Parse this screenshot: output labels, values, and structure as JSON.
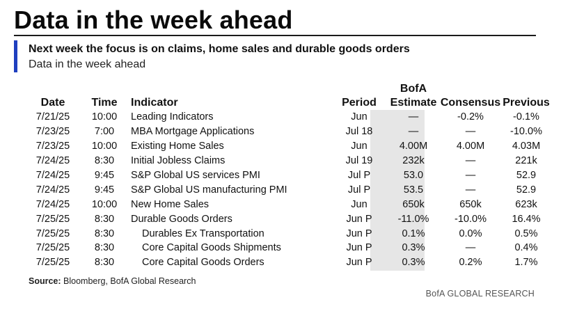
{
  "title": "Data in the week ahead",
  "subtitle": "Next week the focus is on claims, home sales and durable goods orders",
  "subhead": "Data in the week ahead",
  "colors": {
    "accent": "#1f3fbf",
    "shade": "#e6e6e6"
  },
  "headers": {
    "date": "Date",
    "time": "Time",
    "indicator": "Indicator",
    "period": "Period",
    "bofa_line1": "BofA",
    "bofa_line2": "Estimate",
    "consensus": "Consensus",
    "previous": "Previous"
  },
  "rows": [
    {
      "date": "7/21/25",
      "time": "10:00",
      "indicator": "Leading Indicators",
      "period": "Jun",
      "bofa": "—",
      "consensus": "-0.2%",
      "previous": "-0.1%",
      "indent": false
    },
    {
      "date": "7/23/25",
      "time": "7:00",
      "indicator": "MBA Mortgage Applications",
      "period": "Jul 18",
      "bofa": "—",
      "consensus": "—",
      "previous": "-10.0%",
      "indent": false
    },
    {
      "date": "7/23/25",
      "time": "10:00",
      "indicator": "Existing Home Sales",
      "period": "Jun",
      "bofa": "4.00M",
      "consensus": "4.00M",
      "previous": "4.03M",
      "indent": false
    },
    {
      "date": "7/24/25",
      "time": "8:30",
      "indicator": "Initial Jobless Claims",
      "period": "Jul 19",
      "bofa": "232k",
      "consensus": "—",
      "previous": "221k",
      "indent": false
    },
    {
      "date": "7/24/25",
      "time": "9:45",
      "indicator": "S&P Global US services PMI",
      "period": "Jul P",
      "bofa": "53.0",
      "consensus": "—",
      "previous": "52.9",
      "indent": false
    },
    {
      "date": "7/24/25",
      "time": "9:45",
      "indicator": "S&P Global US manufacturing PMI",
      "period": "Jul P",
      "bofa": "53.5",
      "consensus": "—",
      "previous": "52.9",
      "indent": false
    },
    {
      "date": "7/24/25",
      "time": "10:00",
      "indicator": "New Home Sales",
      "period": "Jun",
      "bofa": "650k",
      "consensus": "650k",
      "previous": "623k",
      "indent": false
    },
    {
      "date": "7/25/25",
      "time": "8:30",
      "indicator": "Durable Goods Orders",
      "period": "Jun P",
      "bofa": "-11.0%",
      "consensus": "-10.0%",
      "previous": "16.4%",
      "indent": false
    },
    {
      "date": "7/25/25",
      "time": "8:30",
      "indicator": "Durables Ex Transportation",
      "period": "Jun P",
      "bofa": "0.1%",
      "consensus": "0.0%",
      "previous": "0.5%",
      "indent": true
    },
    {
      "date": "7/25/25",
      "time": "8:30",
      "indicator": "Core Capital Goods Shipments",
      "period": "Jun P",
      "bofa": "0.3%",
      "consensus": "—",
      "previous": "0.4%",
      "indent": true
    },
    {
      "date": "7/25/25",
      "time": "8:30",
      "indicator": "Core Capital Goods Orders",
      "period": "Jun P",
      "bofa": "0.3%",
      "consensus": "0.2%",
      "previous": "1.7%",
      "indent": true
    }
  ],
  "source_label": "Source:",
  "source_text": " Bloomberg, BofA Global Research",
  "credit": "BofA GLOBAL RESEARCH"
}
